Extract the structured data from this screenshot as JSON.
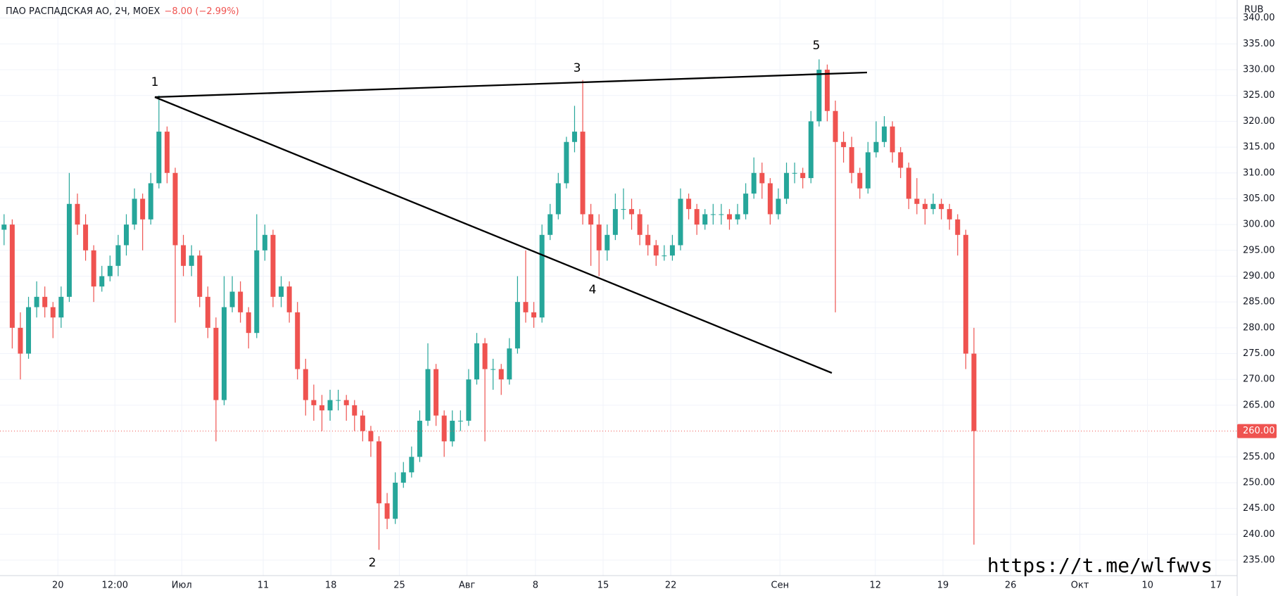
{
  "chart_data": {
    "type": "candlestick",
    "title": "ПАО РАСПАДСКАЯ АО, 2Ч, MOEX",
    "change": "−8.00 (−2.99%)",
    "currency": "RUB",
    "watermark": "https://t.me/wlfwvs",
    "annotations": [
      "1",
      "2",
      "3",
      "4",
      "5"
    ],
    "up_color": "#26a69a",
    "down_color": "#ef5350",
    "grid": true,
    "last_price": {
      "value": 260,
      "label": "260.00"
    },
    "ylim": [
      232,
      343.5
    ],
    "yticks": [
      {
        "value": 235,
        "label": "235.00"
      },
      {
        "value": 240,
        "label": "240.00"
      },
      {
        "value": 245,
        "label": "245.00"
      },
      {
        "value": 250,
        "label": "250.00"
      },
      {
        "value": 255,
        "label": "255.00"
      },
      {
        "value": 265,
        "label": "265.00"
      },
      {
        "value": 270,
        "label": "270.00"
      },
      {
        "value": 275,
        "label": "275.00"
      },
      {
        "value": 280,
        "label": "280.00"
      },
      {
        "value": 285,
        "label": "285.00"
      },
      {
        "value": 290,
        "label": "290.00"
      },
      {
        "value": 295,
        "label": "295.00"
      },
      {
        "value": 300,
        "label": "300.00"
      },
      {
        "value": 305,
        "label": "305.00"
      },
      {
        "value": 310,
        "label": "310.00"
      },
      {
        "value": 315,
        "label": "315.00"
      },
      {
        "value": 320,
        "label": "320.00"
      },
      {
        "value": 325,
        "label": "325.00"
      },
      {
        "value": 330,
        "label": "330.00"
      },
      {
        "value": 335,
        "label": "335.00"
      },
      {
        "value": 340,
        "label": "340.00"
      }
    ],
    "xlim": [
      -0.5,
      151.3
    ],
    "xticks": [
      {
        "value": 6.6,
        "label": "20"
      },
      {
        "value": 13.6,
        "label": "12:00"
      },
      {
        "value": 21.8,
        "label": "Июл"
      },
      {
        "value": 31.8,
        "label": "11"
      },
      {
        "value": 40.1,
        "label": "18"
      },
      {
        "value": 48.5,
        "label": "25"
      },
      {
        "value": 56.8,
        "label": "Авг"
      },
      {
        "value": 65.2,
        "label": "8"
      },
      {
        "value": 73.5,
        "label": "15"
      },
      {
        "value": 81.8,
        "label": "22"
      },
      {
        "value": 95.2,
        "label": "Сен"
      },
      {
        "value": 106.9,
        "label": "12"
      },
      {
        "value": 115.2,
        "label": "19"
      },
      {
        "value": 123.5,
        "label": "26"
      },
      {
        "value": 132.0,
        "label": "Окт"
      },
      {
        "value": 140.3,
        "label": "10"
      },
      {
        "value": 148.7,
        "label": "17"
      }
    ],
    "candles": [
      [
        299,
        302,
        296,
        300
      ],
      [
        300,
        301,
        276,
        280
      ],
      [
        280,
        283,
        270,
        275
      ],
      [
        275,
        286,
        274,
        284
      ],
      [
        284,
        289,
        282,
        286
      ],
      [
        286,
        288,
        282,
        284
      ],
      [
        284,
        285,
        278,
        282
      ],
      [
        282,
        288,
        280,
        286
      ],
      [
        286,
        310,
        285,
        304
      ],
      [
        304,
        306,
        298,
        300
      ],
      [
        300,
        302,
        293,
        295
      ],
      [
        295,
        296,
        285,
        288
      ],
      [
        288,
        292,
        287,
        290
      ],
      [
        290,
        294,
        289,
        292
      ],
      [
        292,
        298,
        290,
        296
      ],
      [
        296,
        302,
        294,
        300
      ],
      [
        300,
        307,
        299,
        305
      ],
      [
        305,
        306,
        295,
        301
      ],
      [
        301,
        310,
        300,
        308
      ],
      [
        308,
        325,
        307,
        318
      ],
      [
        318,
        319,
        308,
        310
      ],
      [
        310,
        311,
        281,
        296
      ],
      [
        296,
        298,
        290,
        292
      ],
      [
        292,
        296,
        290,
        294
      ],
      [
        294,
        295,
        284,
        286
      ],
      [
        286,
        288,
        278,
        280
      ],
      [
        280,
        282,
        258,
        266
      ],
      [
        266,
        290,
        265,
        284
      ],
      [
        284,
        290,
        283,
        287
      ],
      [
        287,
        289,
        281,
        283
      ],
      [
        283,
        284,
        276,
        279
      ],
      [
        279,
        302,
        278,
        295
      ],
      [
        295,
        300,
        293,
        298
      ],
      [
        298,
        299,
        284,
        286
      ],
      [
        286,
        290,
        284,
        288
      ],
      [
        288,
        289,
        281,
        283
      ],
      [
        283,
        285,
        270,
        272
      ],
      [
        272,
        274,
        263,
        266
      ],
      [
        266,
        269,
        262,
        265
      ],
      [
        265,
        267,
        260,
        264
      ],
      [
        264,
        268,
        262,
        266
      ],
      [
        266,
        268,
        264,
        266
      ],
      [
        266,
        267,
        262,
        265
      ],
      [
        265,
        266,
        260,
        263
      ],
      [
        263,
        264,
        258,
        260
      ],
      [
        260,
        261,
        255,
        258
      ],
      [
        258,
        259,
        237,
        246
      ],
      [
        246,
        248,
        241,
        243
      ],
      [
        243,
        252,
        242,
        250
      ],
      [
        250,
        254,
        249,
        252
      ],
      [
        252,
        257,
        251,
        255
      ],
      [
        255,
        264,
        254,
        262
      ],
      [
        262,
        277,
        261,
        272
      ],
      [
        272,
        273,
        261,
        263
      ],
      [
        263,
        264,
        255,
        258
      ],
      [
        258,
        264,
        257,
        262
      ],
      [
        262,
        264,
        260,
        262
      ],
      [
        262,
        272,
        261,
        270
      ],
      [
        270,
        279,
        269,
        277
      ],
      [
        277,
        278,
        258,
        272
      ],
      [
        272,
        274,
        268,
        272
      ],
      [
        272,
        273,
        267,
        270
      ],
      [
        270,
        278,
        269,
        276
      ],
      [
        276,
        290,
        275,
        285
      ],
      [
        285,
        295,
        281,
        283
      ],
      [
        283,
        285,
        280,
        282
      ],
      [
        282,
        300,
        281,
        298
      ],
      [
        298,
        304,
        297,
        302
      ],
      [
        302,
        310,
        301,
        308
      ],
      [
        308,
        317,
        307,
        316
      ],
      [
        316,
        323,
        314,
        318
      ],
      [
        318,
        328,
        300,
        302
      ],
      [
        302,
        304,
        292,
        300
      ],
      [
        300,
        302,
        290,
        295
      ],
      [
        295,
        300,
        293,
        298
      ],
      [
        298,
        306,
        297,
        303
      ],
      [
        303,
        307,
        301,
        303
      ],
      [
        303,
        305,
        299,
        302
      ],
      [
        302,
        303,
        296,
        298
      ],
      [
        298,
        300,
        294,
        296
      ],
      [
        296,
        297,
        292,
        294
      ],
      [
        294,
        296,
        293,
        294
      ],
      [
        294,
        298,
        293,
        296
      ],
      [
        296,
        307,
        295,
        305
      ],
      [
        305,
        306,
        301,
        303
      ],
      [
        303,
        304,
        298,
        300
      ],
      [
        300,
        303,
        299,
        302
      ],
      [
        302,
        304,
        300,
        302
      ],
      [
        302,
        304,
        300,
        302
      ],
      [
        302,
        303,
        299,
        301
      ],
      [
        301,
        304,
        300,
        302
      ],
      [
        302,
        308,
        301,
        306
      ],
      [
        306,
        313,
        305,
        310
      ],
      [
        310,
        312,
        305,
        308
      ],
      [
        308,
        309,
        300,
        302
      ],
      [
        302,
        307,
        301,
        305
      ],
      [
        305,
        312,
        304,
        310
      ],
      [
        310,
        312,
        308,
        310
      ],
      [
        310,
        311,
        307,
        309
      ],
      [
        309,
        322,
        308,
        320
      ],
      [
        320,
        332,
        319,
        330
      ],
      [
        330,
        331,
        320,
        322
      ],
      [
        322,
        324,
        283,
        316
      ],
      [
        316,
        318,
        312,
        315
      ],
      [
        315,
        317,
        308,
        310
      ],
      [
        310,
        311,
        305,
        307
      ],
      [
        307,
        316,
        306,
        314
      ],
      [
        314,
        320,
        313,
        316
      ],
      [
        316,
        321,
        315,
        319
      ],
      [
        319,
        320,
        312,
        314
      ],
      [
        314,
        315,
        309,
        311
      ],
      [
        311,
        312,
        303,
        305
      ],
      [
        305,
        309,
        302,
        304
      ],
      [
        304,
        305,
        300,
        303
      ],
      [
        303,
        306,
        302,
        304
      ],
      [
        304,
        305,
        301,
        303
      ],
      [
        303,
        304,
        299,
        301
      ],
      [
        301,
        302,
        294,
        298
      ],
      [
        298,
        299,
        272,
        275
      ],
      [
        275,
        280,
        238,
        260
      ]
    ]
  }
}
